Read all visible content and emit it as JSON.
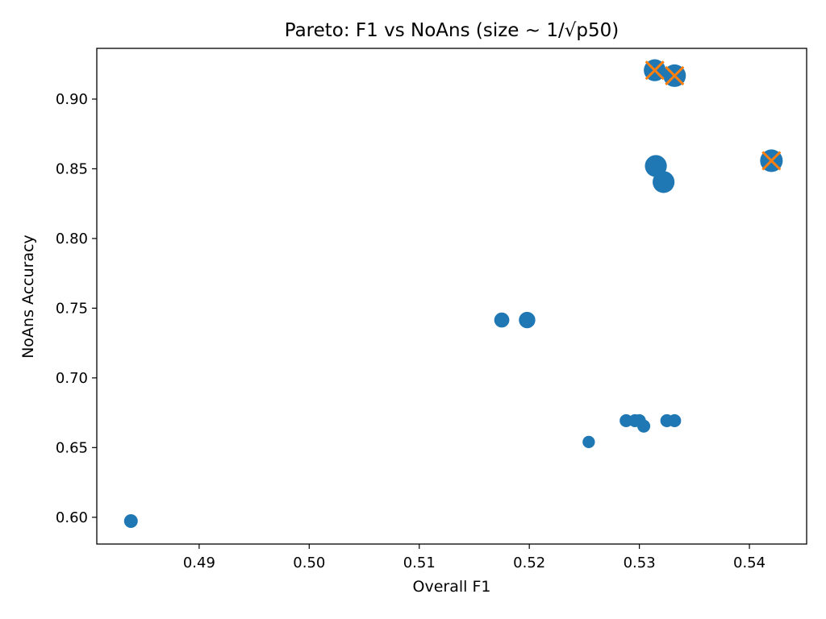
{
  "chart_data": {
    "type": "scatter",
    "title": "Pareto: F1 vs NoAns (size ~ 1/√p50)",
    "xlabel": "Overall F1",
    "ylabel": "NoAns Accuracy",
    "xlim": [
      0.4807,
      0.5452
    ],
    "ylim": [
      0.5808,
      0.9364
    ],
    "xticks": [
      0.49,
      0.5,
      0.51,
      0.52,
      0.53,
      0.54
    ],
    "xtick_labels": [
      "0.49",
      "0.50",
      "0.51",
      "0.52",
      "0.53",
      "0.54"
    ],
    "yticks": [
      0.6,
      0.65,
      0.7,
      0.75,
      0.8,
      0.85,
      0.9
    ],
    "ytick_labels": [
      "0.60",
      "0.65",
      "0.70",
      "0.75",
      "0.80",
      "0.85",
      "0.90"
    ],
    "grid": false,
    "colors": {
      "points": "#1f77b4",
      "pareto": "#ff7f0e"
    },
    "points": [
      {
        "x": 0.4838,
        "y": 0.5973,
        "size": 1.0
      },
      {
        "x": 0.5175,
        "y": 0.7415,
        "size": 1.1
      },
      {
        "x": 0.5198,
        "y": 0.7415,
        "size": 1.2
      },
      {
        "x": 0.5254,
        "y": 0.654,
        "size": 0.9
      },
      {
        "x": 0.5288,
        "y": 0.6693,
        "size": 0.95
      },
      {
        "x": 0.5296,
        "y": 0.6693,
        "size": 0.95
      },
      {
        "x": 0.53,
        "y": 0.6693,
        "size": 0.95
      },
      {
        "x": 0.5304,
        "y": 0.6654,
        "size": 0.95
      },
      {
        "x": 0.5325,
        "y": 0.6693,
        "size": 0.95
      },
      {
        "x": 0.5332,
        "y": 0.6693,
        "size": 0.95
      },
      {
        "x": 0.5315,
        "y": 0.852,
        "size": 1.6
      },
      {
        "x": 0.5322,
        "y": 0.8405,
        "size": 1.6
      },
      {
        "x": 0.5314,
        "y": 0.9207,
        "size": 1.6
      },
      {
        "x": 0.5332,
        "y": 0.9168,
        "size": 1.65
      },
      {
        "x": 0.542,
        "y": 0.8558,
        "size": 1.65
      }
    ],
    "pareto": [
      {
        "x": 0.5314,
        "y": 0.9207
      },
      {
        "x": 0.5332,
        "y": 0.9168
      },
      {
        "x": 0.542,
        "y": 0.8558
      }
    ]
  }
}
